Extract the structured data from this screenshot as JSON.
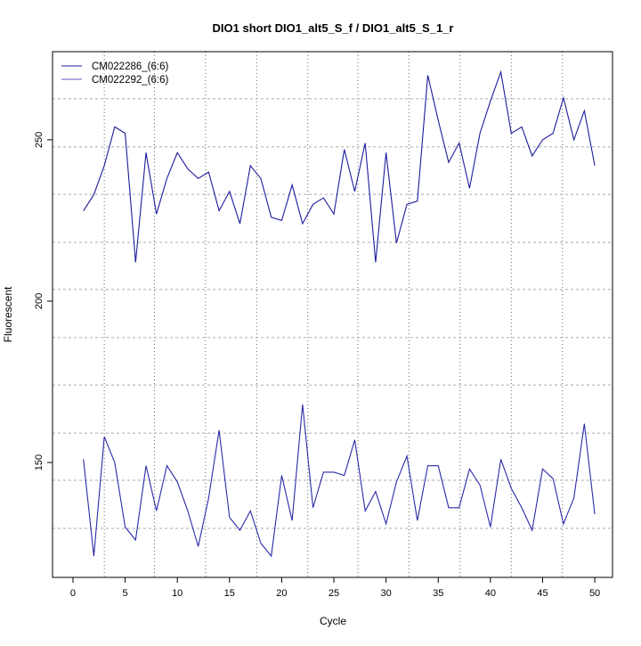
{
  "chart_data": {
    "type": "line",
    "title": "DIO1 short DIO1_alt5_S_f / DIO1_alt5_S_1_r",
    "xlabel": "Cycle",
    "ylabel": "Fluorescent",
    "xlim": [
      -1.96,
      51.7
    ],
    "ylim": [
      114.4,
      277.3
    ],
    "xticks": [
      0,
      5,
      10,
      15,
      20,
      25,
      30,
      35,
      40,
      45,
      50
    ],
    "yticks": [
      150,
      200,
      250
    ],
    "grid_x": [
      3,
      7.8,
      12.7,
      17.6,
      22.5,
      27.3,
      32.2,
      37.1,
      42,
      46.9
    ],
    "grid_y": [
      262.7,
      247.8,
      233.1,
      218.2,
      203.6,
      188.7,
      174,
      159.1,
      144.5,
      129.6
    ],
    "legend_position": "top-left",
    "x": [
      1,
      2,
      3,
      4,
      5,
      6,
      7,
      8,
      9,
      10,
      11,
      12,
      13,
      14,
      15,
      16,
      17,
      18,
      19,
      20,
      21,
      22,
      23,
      24,
      25,
      26,
      27,
      28,
      29,
      30,
      31,
      32,
      33,
      34,
      35,
      36,
      37,
      38,
      39,
      40,
      41,
      42,
      43,
      44,
      45,
      46,
      47,
      48,
      49,
      50
    ],
    "series": [
      {
        "name": "CM022286_(6:6)",
        "color": "#1c1c9c",
        "values": [
          228,
          233,
          242,
          254,
          252,
          212,
          246,
          227,
          238,
          246,
          241,
          238,
          240,
          228,
          234,
          224,
          242,
          238,
          226,
          225,
          236,
          224,
          230,
          232,
          227,
          247,
          234,
          249,
          212,
          246,
          218,
          230,
          231,
          270,
          256,
          243,
          249,
          235,
          252,
          262,
          271,
          252,
          254,
          245,
          250,
          252,
          263,
          250,
          259,
          242
        ]
      },
      {
        "name": "CM022292_(6:6)",
        "color": "#2a2aa8",
        "values": [
          151,
          121,
          158,
          150,
          130,
          126,
          149,
          135,
          149,
          144,
          135,
          124,
          139,
          160,
          133,
          129,
          135,
          125,
          121,
          146,
          132,
          168,
          136,
          147,
          147,
          146,
          157,
          135,
          141,
          131,
          144,
          152,
          132,
          149,
          149,
          136,
          136,
          148,
          143,
          130,
          151,
          142,
          136,
          129,
          148,
          145,
          131,
          139,
          162,
          134
        ]
      }
    ]
  }
}
